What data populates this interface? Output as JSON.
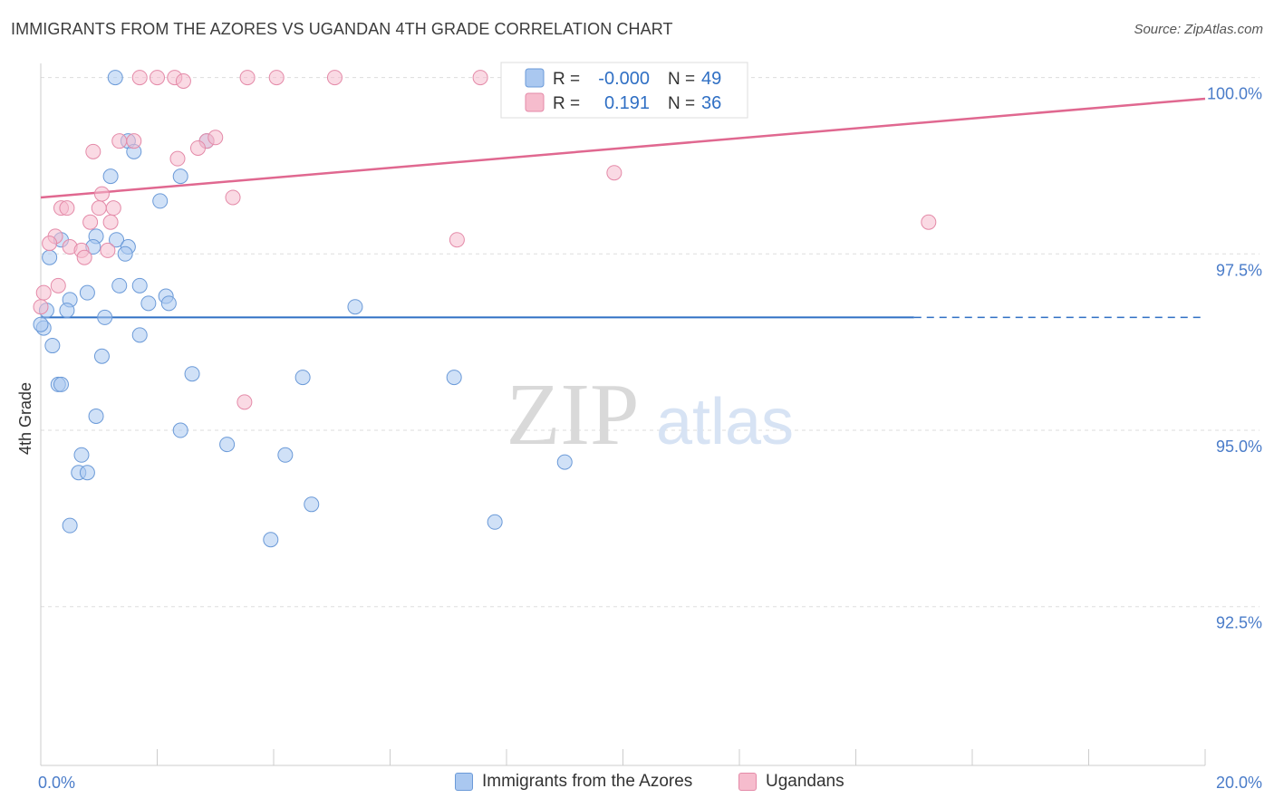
{
  "title": "IMMIGRANTS FROM THE AZORES VS UGANDAN 4TH GRADE CORRELATION CHART",
  "source": "Source: ZipAtlas.com",
  "watermark": {
    "zip": "ZIP",
    "atlas": "atlas"
  },
  "colors": {
    "blue_fill": "#aac8f0",
    "blue_stroke": "#6b9ad8",
    "blue_line": "#2f6fc4",
    "pink_fill": "#f6bccd",
    "pink_stroke": "#e48aa8",
    "pink_line": "#e06890",
    "tick_label": "#4a7cc9",
    "grid": "#dddddd"
  },
  "legend_top": {
    "rows": [
      {
        "series": "blue",
        "r_label": "R =",
        "r_value": "-0.000",
        "n_label": "N =",
        "n_value": "49"
      },
      {
        "series": "pink",
        "r_label": "R =",
        "r_value": "0.191",
        "n_label": "N =",
        "n_value": "36"
      }
    ]
  },
  "legend_bottom": {
    "items": [
      {
        "series": "blue",
        "label": "Immigrants from the Azores"
      },
      {
        "series": "pink",
        "label": "Ugandans"
      }
    ]
  },
  "chart_data": {
    "type": "scatter",
    "title": "IMMIGRANTS FROM THE AZORES VS UGANDAN 4TH GRADE CORRELATION CHART",
    "xlabel": "",
    "ylabel": "4th Grade",
    "xlim": [
      0,
      20
    ],
    "ylim": [
      90.25,
      100.2
    ],
    "x_tick_labels": [
      {
        "value": 0,
        "label": "0.0%"
      },
      {
        "value": 20,
        "label": "20.0%"
      }
    ],
    "y_tick_labels": [
      {
        "value": 100,
        "label": "100.0%"
      },
      {
        "value": 97.5,
        "label": "97.5%"
      },
      {
        "value": 95,
        "label": "95.0%"
      },
      {
        "value": 92.5,
        "label": "92.5%"
      }
    ],
    "grid": true,
    "legend_position": "top-center",
    "series": [
      {
        "name": "Immigrants from the Azores",
        "color": "blue",
        "trend": {
          "x0": 0,
          "y0": 96.6,
          "x1": 15.0,
          "y1": 96.6,
          "dash_to": 20.0
        },
        "points": [
          [
            1.28,
            100.0
          ],
          [
            9.0,
            100.0
          ],
          [
            11.3,
            100.0
          ],
          [
            1.5,
            99.1
          ],
          [
            2.85,
            99.1
          ],
          [
            1.6,
            98.95
          ],
          [
            1.2,
            98.6
          ],
          [
            2.4,
            98.6
          ],
          [
            2.05,
            98.25
          ],
          [
            0.35,
            97.7
          ],
          [
            0.95,
            97.75
          ],
          [
            1.3,
            97.7
          ],
          [
            0.15,
            97.45
          ],
          [
            0.9,
            97.6
          ],
          [
            1.5,
            97.6
          ],
          [
            1.45,
            97.5
          ],
          [
            1.35,
            97.05
          ],
          [
            1.7,
            97.05
          ],
          [
            0.8,
            96.95
          ],
          [
            2.15,
            96.9
          ],
          [
            0.5,
            96.85
          ],
          [
            1.85,
            96.8
          ],
          [
            2.2,
            96.8
          ],
          [
            5.4,
            96.75
          ],
          [
            0.1,
            96.7
          ],
          [
            0.45,
            96.7
          ],
          [
            1.1,
            96.6
          ],
          [
            0.05,
            96.45
          ],
          [
            1.7,
            96.35
          ],
          [
            0.2,
            96.2
          ],
          [
            1.05,
            96.05
          ],
          [
            2.6,
            95.8
          ],
          [
            4.5,
            95.75
          ],
          [
            7.1,
            95.75
          ],
          [
            0.3,
            95.65
          ],
          [
            0.35,
            95.65
          ],
          [
            0.95,
            95.2
          ],
          [
            2.4,
            95.0
          ],
          [
            3.2,
            94.8
          ],
          [
            4.2,
            94.65
          ],
          [
            0.7,
            94.65
          ],
          [
            0.65,
            94.4
          ],
          [
            0.8,
            94.4
          ],
          [
            9.0,
            94.55
          ],
          [
            4.65,
            93.95
          ],
          [
            7.8,
            93.7
          ],
          [
            0.5,
            93.65
          ],
          [
            3.95,
            93.45
          ],
          [
            0.0,
            96.5
          ]
        ]
      },
      {
        "name": "Ugandans",
        "color": "pink",
        "trend": {
          "x0": 0,
          "y0": 98.3,
          "x1": 20.0,
          "y1": 99.7
        },
        "points": [
          [
            1.7,
            100.0
          ],
          [
            2.0,
            100.0
          ],
          [
            2.3,
            100.0
          ],
          [
            2.45,
            99.95
          ],
          [
            3.55,
            100.0
          ],
          [
            4.05,
            100.0
          ],
          [
            5.05,
            100.0
          ],
          [
            7.55,
            100.0
          ],
          [
            1.35,
            99.1
          ],
          [
            1.6,
            99.1
          ],
          [
            2.85,
            99.1
          ],
          [
            3.0,
            99.15
          ],
          [
            0.9,
            98.95
          ],
          [
            2.35,
            98.85
          ],
          [
            2.7,
            99.0
          ],
          [
            9.85,
            98.65
          ],
          [
            1.05,
            98.35
          ],
          [
            3.3,
            98.3
          ],
          [
            1.0,
            98.15
          ],
          [
            1.25,
            98.15
          ],
          [
            0.35,
            98.15
          ],
          [
            0.45,
            98.15
          ],
          [
            1.2,
            97.95
          ],
          [
            0.85,
            97.95
          ],
          [
            15.25,
            97.95
          ],
          [
            0.25,
            97.75
          ],
          [
            0.15,
            97.65
          ],
          [
            0.5,
            97.6
          ],
          [
            0.7,
            97.55
          ],
          [
            1.15,
            97.55
          ],
          [
            0.75,
            97.45
          ],
          [
            7.15,
            97.7
          ],
          [
            0.3,
            97.05
          ],
          [
            0.05,
            96.95
          ],
          [
            0.0,
            96.75
          ],
          [
            3.5,
            95.4
          ]
        ]
      }
    ]
  }
}
